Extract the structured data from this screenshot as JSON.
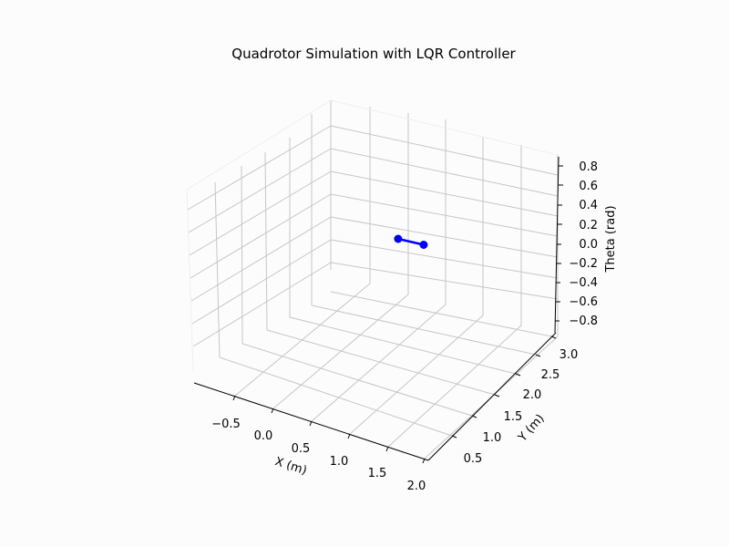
{
  "chart_data": {
    "type": "line",
    "title": "Quadrotor Simulation with LQR Controller",
    "xlabel": "X (m)",
    "ylabel": "Y (m)",
    "zlabel": "Theta (rad)",
    "x_ticks": [
      "−0.5",
      "0.0",
      "0.5",
      "1.0",
      "1.5",
      "2.0"
    ],
    "y_ticks": [
      "0.5",
      "1.0",
      "1.5",
      "2.0",
      "2.5",
      "3.0"
    ],
    "z_ticks": [
      "−0.8",
      "−0.6",
      "−0.4",
      "−0.2",
      "0.0",
      "0.2",
      "0.4",
      "0.6",
      "0.8"
    ],
    "series": [
      {
        "color": "#0000ff",
        "marker": "circle",
        "points": [
          {
            "x": 0.95,
            "y": 1.85,
            "z": -0.12
          },
          {
            "x": 1.2,
            "y": 2.0,
            "z": -0.18
          }
        ]
      }
    ],
    "grid": true
  }
}
